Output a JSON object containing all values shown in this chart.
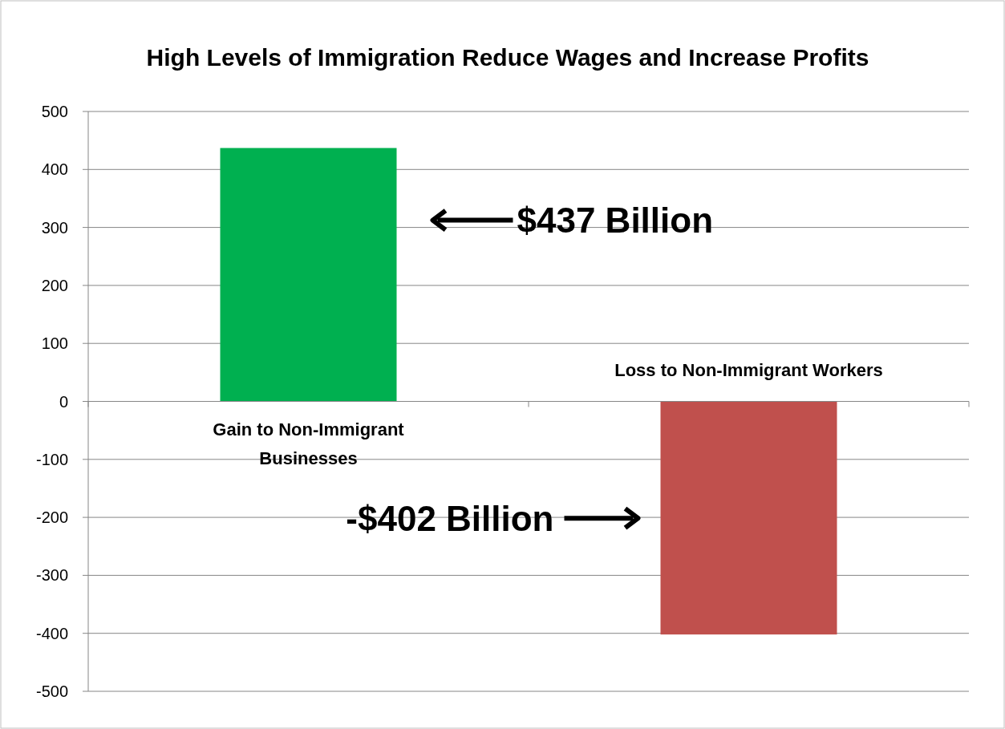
{
  "chart_data": {
    "type": "bar",
    "title": "High Levels of Immigration Reduce Wages and Increase Profits",
    "categories": [
      "Gain to Non-Immigrant Businesses",
      "Loss to Non-Immigrant Workers"
    ],
    "values": [
      437,
      -402
    ],
    "colors": [
      "#00b050",
      "#c0504d"
    ],
    "annotations": [
      "$437 Billion",
      "-$402 Billion"
    ],
    "ylim": [
      -500,
      500
    ],
    "yticks": [
      -500,
      -400,
      -300,
      -200,
      -100,
      0,
      100,
      200,
      300,
      400,
      500
    ],
    "grid": "y"
  }
}
